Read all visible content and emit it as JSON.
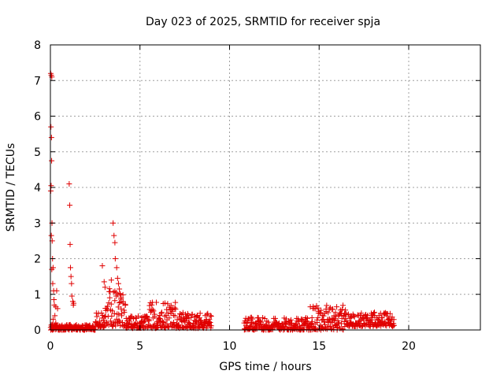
{
  "chart_data": {
    "type": "scatter",
    "title": "Day 023 of 2025, SRMTID for receiver spja",
    "xlabel": "GPS time / hours",
    "ylabel": "SRMTID / TECUs",
    "xlim": [
      0,
      24
    ],
    "ylim": [
      0,
      8
    ],
    "x_ticks": [
      0,
      5,
      10,
      15,
      20
    ],
    "y_ticks": [
      0,
      1,
      2,
      3,
      4,
      5,
      6,
      7,
      8
    ],
    "grid": true,
    "marker": "+",
    "series": [
      {
        "name": "SRMTID",
        "color": "#e00000",
        "points": [
          [
            0.02,
            7.2
          ],
          [
            0.05,
            7.15
          ],
          [
            0.08,
            7.1
          ],
          [
            0.03,
            5.7
          ],
          [
            0.06,
            5.4
          ],
          [
            0.07,
            4.75
          ],
          [
            0.04,
            4.05
          ],
          [
            0.02,
            3.9
          ],
          [
            0.09,
            3.0
          ],
          [
            0.05,
            2.65
          ],
          [
            0.1,
            2.5
          ],
          [
            0.12,
            2.0
          ],
          [
            0.15,
            1.75
          ],
          [
            0.08,
            1.7
          ],
          [
            0.13,
            1.3
          ],
          [
            0.18,
            1.1
          ],
          [
            0.2,
            0.85
          ],
          [
            0.22,
            0.7
          ],
          [
            0.3,
            0.65
          ],
          [
            0.35,
            1.1
          ],
          [
            0.4,
            0.6
          ],
          [
            0.25,
            0.4
          ],
          [
            0.3,
            0.2
          ],
          [
            0.35,
            0.1
          ],
          [
            0.45,
            0.05
          ],
          [
            0.15,
            0.3
          ],
          [
            0.1,
            0.15
          ],
          [
            1.05,
            4.1
          ],
          [
            1.08,
            3.5
          ],
          [
            1.1,
            2.4
          ],
          [
            1.12,
            1.75
          ],
          [
            1.15,
            1.5
          ],
          [
            1.18,
            1.3
          ],
          [
            1.2,
            0.95
          ],
          [
            1.25,
            0.8
          ],
          [
            1.28,
            0.7
          ],
          [
            1.3,
            0.75
          ],
          [
            2.9,
            1.8
          ],
          [
            3.0,
            1.35
          ],
          [
            3.05,
            1.2
          ],
          [
            3.5,
            3.0
          ],
          [
            3.55,
            2.65
          ],
          [
            3.6,
            2.45
          ],
          [
            3.62,
            2.0
          ],
          [
            3.7,
            1.75
          ],
          [
            3.75,
            1.45
          ],
          [
            3.8,
            1.3
          ],
          [
            3.85,
            1.15
          ],
          [
            3.9,
            1.0
          ],
          [
            3.95,
            0.9
          ],
          [
            4.05,
            0.75
          ],
          [
            3.4,
            1.4
          ]
        ],
        "bands": [
          {
            "x_from": 0.0,
            "x_to": 2.5,
            "y_min": 0.0,
            "y_max": 0.15
          },
          {
            "x_from": 2.5,
            "x_to": 3.0,
            "y_min": 0.05,
            "y_max": 0.5
          },
          {
            "x_from": 3.0,
            "x_to": 4.2,
            "y_min": 0.1,
            "y_max": 1.2
          },
          {
            "x_from": 4.2,
            "x_to": 5.5,
            "y_min": 0.05,
            "y_max": 0.4
          },
          {
            "x_from": 5.5,
            "x_to": 7.0,
            "y_min": 0.05,
            "y_max": 0.8
          },
          {
            "x_from": 7.0,
            "x_to": 9.0,
            "y_min": 0.05,
            "y_max": 0.5
          },
          {
            "x_from": 10.8,
            "x_to": 14.5,
            "y_min": 0.0,
            "y_max": 0.35
          },
          {
            "x_from": 14.5,
            "x_to": 16.5,
            "y_min": 0.0,
            "y_max": 0.7
          },
          {
            "x_from": 16.5,
            "x_to": 19.2,
            "y_min": 0.1,
            "y_max": 0.5
          }
        ]
      }
    ]
  }
}
